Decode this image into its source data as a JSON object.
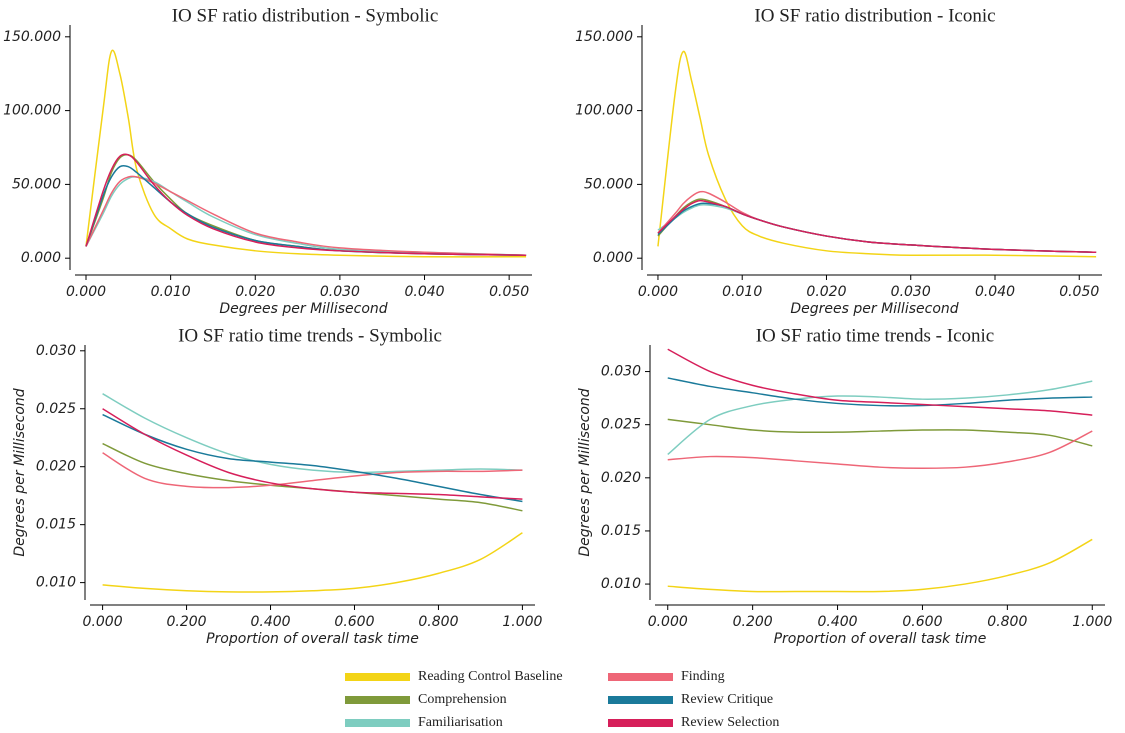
{
  "chart_data": [
    {
      "type": "line",
      "title": "IO SF ratio distribution - Symbolic",
      "x_label": "Degrees per Millisecond",
      "x": [
        0,
        0.002,
        0.003,
        0.004,
        0.005,
        0.006,
        0.008,
        0.01,
        0.012,
        0.015,
        0.02,
        0.025,
        0.03,
        0.04,
        0.052
      ],
      "xlim": [
        -0.0013,
        0.0527
      ],
      "ylim": [
        -8,
        158
      ],
      "xticks": [
        {
          "value": 0,
          "label": "0.000"
        },
        {
          "value": 0.01,
          "label": "0.010"
        },
        {
          "value": 0.02,
          "label": "0.020"
        },
        {
          "value": 0.03,
          "label": "0.030"
        },
        {
          "value": 0.04,
          "label": "0.040"
        },
        {
          "value": 0.05,
          "label": "0.050"
        }
      ],
      "yticks": [
        {
          "value": 0,
          "label": "0.000"
        },
        {
          "value": 50,
          "label": "50.000"
        },
        {
          "value": 100,
          "label": "100.000"
        },
        {
          "value": 150,
          "label": "150.000"
        }
      ],
      "series": [
        {
          "name": "Reading Control Baseline",
          "color": "#f3d416",
          "values": [
            8,
            100,
            140,
            125,
            95,
            60,
            30,
            20,
            13,
            9,
            5,
            3,
            2,
            1,
            1
          ]
        },
        {
          "name": "Comprehension",
          "color": "#7f9a3a",
          "values": [
            8,
            40,
            58,
            68,
            70,
            66,
            52,
            40,
            30,
            22,
            12,
            8,
            5,
            3,
            2
          ]
        },
        {
          "name": "Familiarisation",
          "color": "#7ecdc0",
          "values": [
            8,
            30,
            42,
            50,
            54,
            55,
            52,
            45,
            38,
            28,
            16,
            10,
            6,
            4,
            2
          ]
        },
        {
          "name": "Finding",
          "color": "#ee6677",
          "values": [
            8,
            32,
            44,
            52,
            55,
            55,
            51,
            45,
            39,
            30,
            17,
            11,
            7,
            4,
            2
          ]
        },
        {
          "name": "Review Critique",
          "color": "#1a7a9a",
          "values": [
            8,
            42,
            55,
            62,
            62,
            58,
            48,
            38,
            30,
            21,
            12,
            8,
            5,
            3,
            2
          ]
        },
        {
          "name": "Review Selection",
          "color": "#d61f5a",
          "values": [
            8,
            45,
            60,
            69,
            70,
            65,
            50,
            38,
            29,
            20,
            11,
            7,
            5,
            3,
            2
          ]
        }
      ]
    },
    {
      "type": "line",
      "title": "IO SF ratio distribution - Iconic",
      "x_label": "Degrees per Millisecond",
      "x": [
        0,
        0.002,
        0.003,
        0.004,
        0.005,
        0.006,
        0.008,
        0.01,
        0.012,
        0.015,
        0.02,
        0.025,
        0.03,
        0.04,
        0.052
      ],
      "xlim": [
        -0.0013,
        0.0527
      ],
      "ylim": [
        -8,
        158
      ],
      "xticks": [
        {
          "value": 0,
          "label": "0.000"
        },
        {
          "value": 0.01,
          "label": "0.010"
        },
        {
          "value": 0.02,
          "label": "0.020"
        },
        {
          "value": 0.03,
          "label": "0.030"
        },
        {
          "value": 0.04,
          "label": "0.040"
        },
        {
          "value": 0.05,
          "label": "0.050"
        }
      ],
      "yticks": [
        {
          "value": 0,
          "label": "0.000"
        },
        {
          "value": 50,
          "label": "50.000"
        },
        {
          "value": 100,
          "label": "100.000"
        },
        {
          "value": 150,
          "label": "150.000"
        }
      ],
      "series": [
        {
          "name": "Reading Control Baseline",
          "color": "#f3d416",
          "values": [
            8,
            110,
            140,
            120,
            95,
            70,
            40,
            22,
            15,
            10,
            5,
            3,
            2,
            2,
            1
          ]
        },
        {
          "name": "Comprehension",
          "color": "#7f9a3a",
          "values": [
            15,
            28,
            34,
            38,
            40,
            39,
            35,
            30,
            26,
            21,
            15,
            11,
            9,
            6,
            4
          ]
        },
        {
          "name": "Familiarisation",
          "color": "#7ecdc0",
          "values": [
            19,
            27,
            31,
            34,
            36,
            36,
            34,
            30,
            26,
            21,
            15,
            11,
            9,
            6,
            4
          ]
        },
        {
          "name": "Finding",
          "color": "#ee6677",
          "values": [
            17,
            30,
            37,
            42,
            45,
            44,
            38,
            31,
            26,
            21,
            15,
            11,
            9,
            6,
            4
          ]
        },
        {
          "name": "Review Critique",
          "color": "#1a7a9a",
          "values": [
            16,
            27,
            32,
            35,
            37,
            37,
            35,
            30,
            26,
            21,
            15,
            11,
            9,
            6,
            4
          ]
        },
        {
          "name": "Review Selection",
          "color": "#d61f5a",
          "values": [
            17,
            28,
            33,
            37,
            39,
            38,
            35,
            30,
            26,
            21,
            15,
            11,
            9,
            6,
            4
          ]
        }
      ]
    },
    {
      "type": "line",
      "title": "IO SF ratio time trends - Symbolic",
      "x_label": "Proportion of overall task time",
      "y_label": "Degrees per Millisecond",
      "x": [
        0,
        0.1,
        0.2,
        0.3,
        0.4,
        0.5,
        0.6,
        0.7,
        0.8,
        0.9,
        1.0
      ],
      "xlim": [
        -0.03,
        1.03
      ],
      "ylim": [
        0.0085,
        0.0305
      ],
      "xticks": [
        {
          "value": 0,
          "label": "0.000"
        },
        {
          "value": 0.2,
          "label": "0.200"
        },
        {
          "value": 0.4,
          "label": "0.400"
        },
        {
          "value": 0.6,
          "label": "0.600"
        },
        {
          "value": 0.8,
          "label": "0.800"
        },
        {
          "value": 1,
          "label": "1.000"
        }
      ],
      "yticks": [
        {
          "value": 0.01,
          "label": "0.010"
        },
        {
          "value": 0.015,
          "label": "0.015"
        },
        {
          "value": 0.02,
          "label": "0.020"
        },
        {
          "value": 0.025,
          "label": "0.025"
        },
        {
          "value": 0.03,
          "label": "0.030"
        }
      ],
      "series": [
        {
          "name": "Reading Control Baseline",
          "color": "#f3d416",
          "values": [
            0.0098,
            0.0095,
            0.0093,
            0.0092,
            0.0092,
            0.0093,
            0.0095,
            0.01,
            0.0108,
            0.012,
            0.0143
          ]
        },
        {
          "name": "Comprehension",
          "color": "#7f9a3a",
          "values": [
            0.022,
            0.0203,
            0.0194,
            0.0188,
            0.0184,
            0.0181,
            0.0178,
            0.0175,
            0.0172,
            0.0169,
            0.0162
          ]
        },
        {
          "name": "Familiarisation",
          "color": "#7ecdc0",
          "values": [
            0.0263,
            0.0242,
            0.0225,
            0.0211,
            0.0202,
            0.0197,
            0.0195,
            0.0196,
            0.0197,
            0.0198,
            0.0197
          ]
        },
        {
          "name": "Finding",
          "color": "#ee6677",
          "values": [
            0.0212,
            0.019,
            0.0183,
            0.0182,
            0.0184,
            0.0188,
            0.0192,
            0.0195,
            0.0196,
            0.0196,
            0.0197
          ]
        },
        {
          "name": "Review Critique",
          "color": "#1a7a9a",
          "values": [
            0.0245,
            0.0228,
            0.0215,
            0.0207,
            0.0204,
            0.0201,
            0.0196,
            0.019,
            0.0183,
            0.0176,
            0.017
          ]
        },
        {
          "name": "Review Selection",
          "color": "#d61f5a",
          "values": [
            0.025,
            0.0228,
            0.021,
            0.0195,
            0.0186,
            0.0181,
            0.0178,
            0.0177,
            0.0176,
            0.0174,
            0.0172
          ]
        }
      ]
    },
    {
      "type": "line",
      "title": "IO SF ratio time trends - Iconic",
      "x_label": "Proportion of overall task time",
      "y_label": "Degrees per Millisecond",
      "x": [
        0,
        0.1,
        0.2,
        0.3,
        0.4,
        0.5,
        0.6,
        0.7,
        0.8,
        0.9,
        1.0
      ],
      "xlim": [
        -0.03,
        1.03
      ],
      "ylim": [
        0.0085,
        0.0325
      ],
      "xticks": [
        {
          "value": 0,
          "label": "0.000"
        },
        {
          "value": 0.2,
          "label": "0.200"
        },
        {
          "value": 0.4,
          "label": "0.400"
        },
        {
          "value": 0.6,
          "label": "0.600"
        },
        {
          "value": 0.8,
          "label": "0.800"
        },
        {
          "value": 1,
          "label": "1.000"
        }
      ],
      "yticks": [
        {
          "value": 0.01,
          "label": "0.010"
        },
        {
          "value": 0.015,
          "label": "0.015"
        },
        {
          "value": 0.02,
          "label": "0.020"
        },
        {
          "value": 0.025,
          "label": "0.025"
        },
        {
          "value": 0.03,
          "label": "0.030"
        }
      ],
      "series": [
        {
          "name": "Reading Control Baseline",
          "color": "#f3d416",
          "values": [
            0.0098,
            0.0095,
            0.0093,
            0.0093,
            0.0093,
            0.0093,
            0.0095,
            0.01,
            0.0108,
            0.012,
            0.0142
          ]
        },
        {
          "name": "Comprehension",
          "color": "#7f9a3a",
          "values": [
            0.0255,
            0.025,
            0.0245,
            0.0243,
            0.0243,
            0.0244,
            0.0245,
            0.0245,
            0.0243,
            0.024,
            0.023
          ]
        },
        {
          "name": "Familiarisation",
          "color": "#7ecdc0",
          "values": [
            0.0222,
            0.0255,
            0.0268,
            0.0274,
            0.0277,
            0.0276,
            0.0274,
            0.0275,
            0.0278,
            0.0283,
            0.0291
          ]
        },
        {
          "name": "Finding",
          "color": "#ee6677",
          "values": [
            0.0217,
            0.022,
            0.0219,
            0.0216,
            0.0213,
            0.021,
            0.0209,
            0.021,
            0.0215,
            0.0224,
            0.0244
          ]
        },
        {
          "name": "Review Critique",
          "color": "#1a7a9a",
          "values": [
            0.0294,
            0.0286,
            0.028,
            0.0274,
            0.027,
            0.0268,
            0.0268,
            0.027,
            0.0273,
            0.0275,
            0.0276
          ]
        },
        {
          "name": "Review Selection",
          "color": "#d61f5a",
          "values": [
            0.0321,
            0.03,
            0.0287,
            0.0279,
            0.0273,
            0.0271,
            0.0269,
            0.0267,
            0.0265,
            0.0263,
            0.0259
          ]
        }
      ]
    }
  ]
}
